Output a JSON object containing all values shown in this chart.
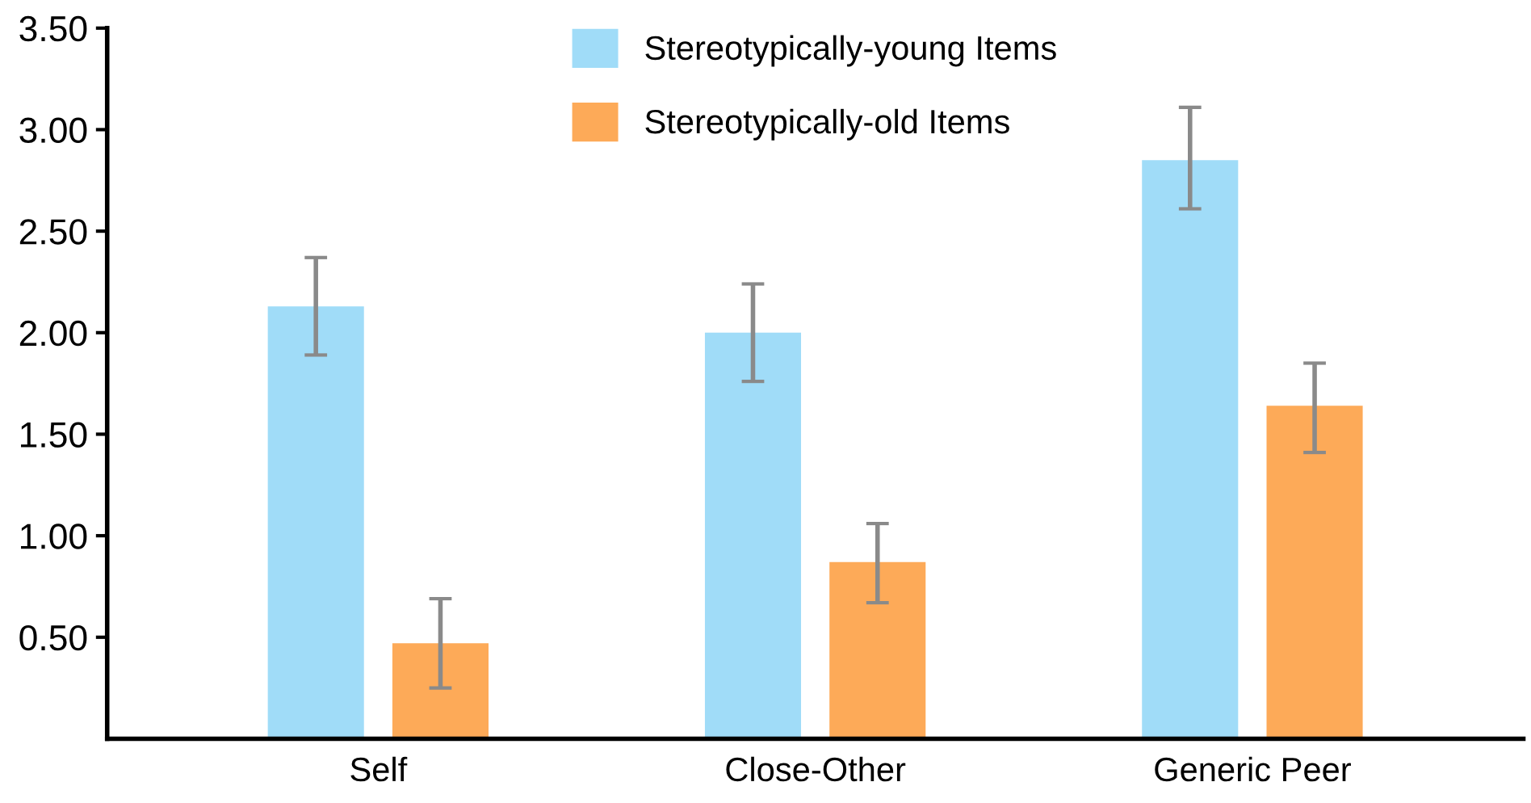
{
  "chart_data": {
    "type": "bar",
    "categories": [
      "Self",
      "Close-Other",
      "Generic Peer"
    ],
    "series": [
      {
        "name": "Stereotypically-young Items",
        "color": "#a0dcf8",
        "values": [
          2.13,
          2.0,
          2.85
        ],
        "errors": [
          [
            1.89,
            2.37
          ],
          [
            1.76,
            2.24
          ],
          [
            2.61,
            3.11
          ]
        ]
      },
      {
        "name": "Stereotypically-old Items",
        "color": "#fdaa58",
        "values": [
          0.47,
          0.87,
          1.64
        ],
        "errors": [
          [
            0.25,
            0.69
          ],
          [
            0.67,
            1.06
          ],
          [
            1.41,
            1.85
          ]
        ]
      }
    ],
    "ylim": [
      0,
      3.5
    ],
    "yticks": [
      {
        "value": 0.5,
        "label": "0.50"
      },
      {
        "value": 1.0,
        "label": "1.00"
      },
      {
        "value": 1.5,
        "label": "1.50"
      },
      {
        "value": 2.0,
        "label": "2.00"
      },
      {
        "value": 2.5,
        "label": "2.50"
      },
      {
        "value": 3.0,
        "label": "3.00"
      },
      {
        "value": 3.5,
        "label": "3.50"
      }
    ],
    "grid": false,
    "legend": "top"
  }
}
